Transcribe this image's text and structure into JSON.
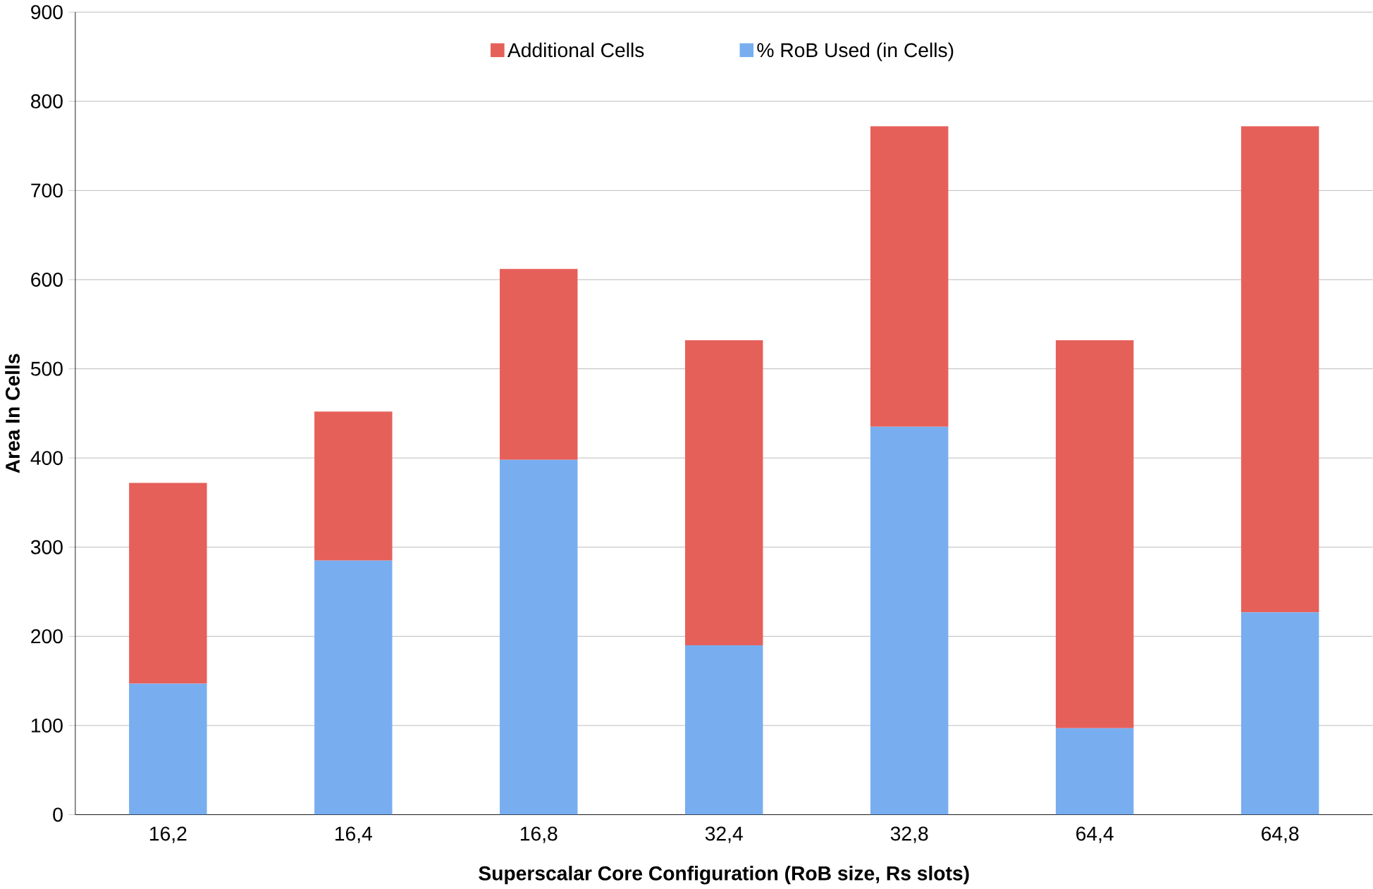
{
  "chart_data": {
    "type": "bar",
    "stacked": true,
    "xlabel": "Superscalar Core Configuration (RoB size, Rs slots)",
    "ylabel": "Area In Cells",
    "categories": [
      "16,2",
      "16,4",
      "16,8",
      "32,4",
      "32,8",
      "64,4",
      "64,8"
    ],
    "series": [
      {
        "name": "% RoB Used (in Cells)",
        "color": "#78aef0",
        "values": [
          147,
          285,
          398,
          190,
          435,
          97,
          227
        ]
      },
      {
        "name": "Additional Cells",
        "color": "#e6605a",
        "values": [
          225,
          167,
          214,
          342,
          337,
          435,
          545
        ]
      }
    ],
    "ylim": [
      0,
      900
    ],
    "yticks": [
      0,
      100,
      200,
      300,
      400,
      500,
      600,
      700,
      800,
      900
    ],
    "grid": "y",
    "legend": "top"
  }
}
